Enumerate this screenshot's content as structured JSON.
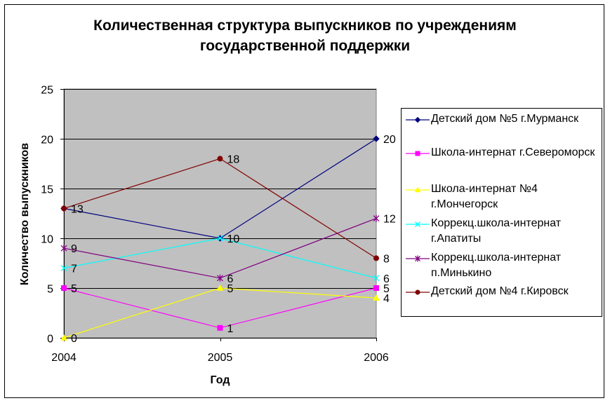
{
  "title_line1": "Количественная структура выпускников по учреждениям",
  "title_line2": "государственной поддержки",
  "chart_data": {
    "type": "line",
    "x": [
      "2004",
      "2005",
      "2006"
    ],
    "xlabel": "Год",
    "ylabel": "Количество выпускников",
    "ylim": [
      0,
      25
    ],
    "yticks": [
      0,
      5,
      10,
      15,
      20,
      25
    ],
    "grid": true,
    "plot_background": "#C0C0C0",
    "legend_position": "right",
    "series": [
      {
        "name": "Детский дом №5 г.Мурманск",
        "values": [
          13,
          10,
          20
        ],
        "color": "#000080",
        "marker": "diamond"
      },
      {
        "name": "Школа-интернат г.Североморск",
        "values": [
          5,
          1,
          5
        ],
        "color": "#FF00FF",
        "marker": "square"
      },
      {
        "name": "Школа-интернат №4 г.Мончегорск",
        "values": [
          0,
          5,
          4
        ],
        "color": "#FFFF00",
        "marker": "triangle"
      },
      {
        "name": "Коррекц.школа-интернат г.Апатиты",
        "values": [
          7,
          10,
          6
        ],
        "color": "#00FFFF",
        "marker": "x"
      },
      {
        "name": "Коррекц.школа-интернат п.Минькино",
        "values": [
          9,
          6,
          12
        ],
        "color": "#800080",
        "marker": "star"
      },
      {
        "name": "Детский дом №4 г.Кировск",
        "values": [
          13,
          18,
          8
        ],
        "color": "#800000",
        "marker": "circle"
      }
    ],
    "data_labels": [
      {
        "series": 0,
        "point": 0,
        "text": "13"
      },
      {
        "series": 0,
        "point": 1,
        "text": "10"
      },
      {
        "series": 0,
        "point": 2,
        "text": "20"
      },
      {
        "series": 1,
        "point": 0,
        "text": "5"
      },
      {
        "series": 1,
        "point": 1,
        "text": "1"
      },
      {
        "series": 1,
        "point": 2,
        "text": "5"
      },
      {
        "series": 2,
        "point": 0,
        "text": "0"
      },
      {
        "series": 2,
        "point": 1,
        "text": "5"
      },
      {
        "series": 2,
        "point": 2,
        "text": "4"
      },
      {
        "series": 3,
        "point": 0,
        "text": "7"
      },
      {
        "series": 3,
        "point": 2,
        "text": "6"
      },
      {
        "series": 4,
        "point": 0,
        "text": "9"
      },
      {
        "series": 4,
        "point": 1,
        "text": "6"
      },
      {
        "series": 4,
        "point": 2,
        "text": "12"
      },
      {
        "series": 5,
        "point": 1,
        "text": "18"
      },
      {
        "series": 5,
        "point": 2,
        "text": "8"
      }
    ]
  }
}
